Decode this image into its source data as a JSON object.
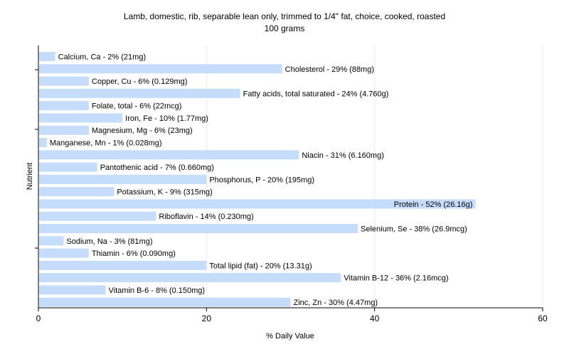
{
  "chart_data": {
    "type": "bar",
    "orientation": "horizontal",
    "title": "Lamb, domestic, rib, separable lean only, trimmed to 1/4\" fat, choice, cooked, roasted",
    "subtitle": "100 grams",
    "xlabel": "% Daily Value",
    "ylabel": "Nutrient",
    "xlim": [
      0,
      60
    ],
    "xticks": [
      0,
      20,
      40,
      60
    ],
    "grid": true,
    "bar_color": "#c6dcfb",
    "categories": [
      "Calcium, Ca",
      "Cholesterol",
      "Copper, Cu",
      "Fatty acids, total saturated",
      "Folate, total",
      "Iron, Fe",
      "Magnesium, Mg",
      "Manganese, Mn",
      "Niacin",
      "Pantothenic acid",
      "Phosphorus, P",
      "Potassium, K",
      "Protein",
      "Riboflavin",
      "Selenium, Se",
      "Sodium, Na",
      "Thiamin",
      "Total lipid (fat)",
      "Vitamin B-12",
      "Vitamin B-6",
      "Zinc, Zn"
    ],
    "values": [
      2,
      29,
      6,
      24,
      6,
      10,
      6,
      1,
      31,
      7,
      20,
      9,
      52,
      14,
      38,
      3,
      6,
      20,
      36,
      8,
      30
    ],
    "labels": [
      "Calcium, Ca - 2% (21mg)",
      "Cholesterol - 29% (88mg)",
      "Copper, Cu - 6% (0.129mg)",
      "Fatty acids, total saturated - 24% (4.760g)",
      "Folate, total - 6% (22mcg)",
      "Iron, Fe - 10% (1.77mg)",
      "Magnesium, Mg - 6% (23mg)",
      "Manganese, Mn - 1% (0.028mg)",
      "Niacin - 31% (6.160mg)",
      "Pantothenic acid - 7% (0.660mg)",
      "Phosphorus, P - 20% (195mg)",
      "Potassium, K - 9% (315mg)",
      "Protein - 52% (26.16g)",
      "Riboflavin - 14% (0.230mg)",
      "Selenium, Se - 38% (26.9mcg)",
      "Sodium, Na - 3% (81mg)",
      "Thiamin - 6% (0.090mg)",
      "Total lipid (fat) - 20% (13.31g)",
      "Vitamin B-12 - 36% (2.16mcg)",
      "Vitamin B-6 - 8% (0.150mg)",
      "Zinc, Zn - 30% (4.47mg)"
    ]
  }
}
